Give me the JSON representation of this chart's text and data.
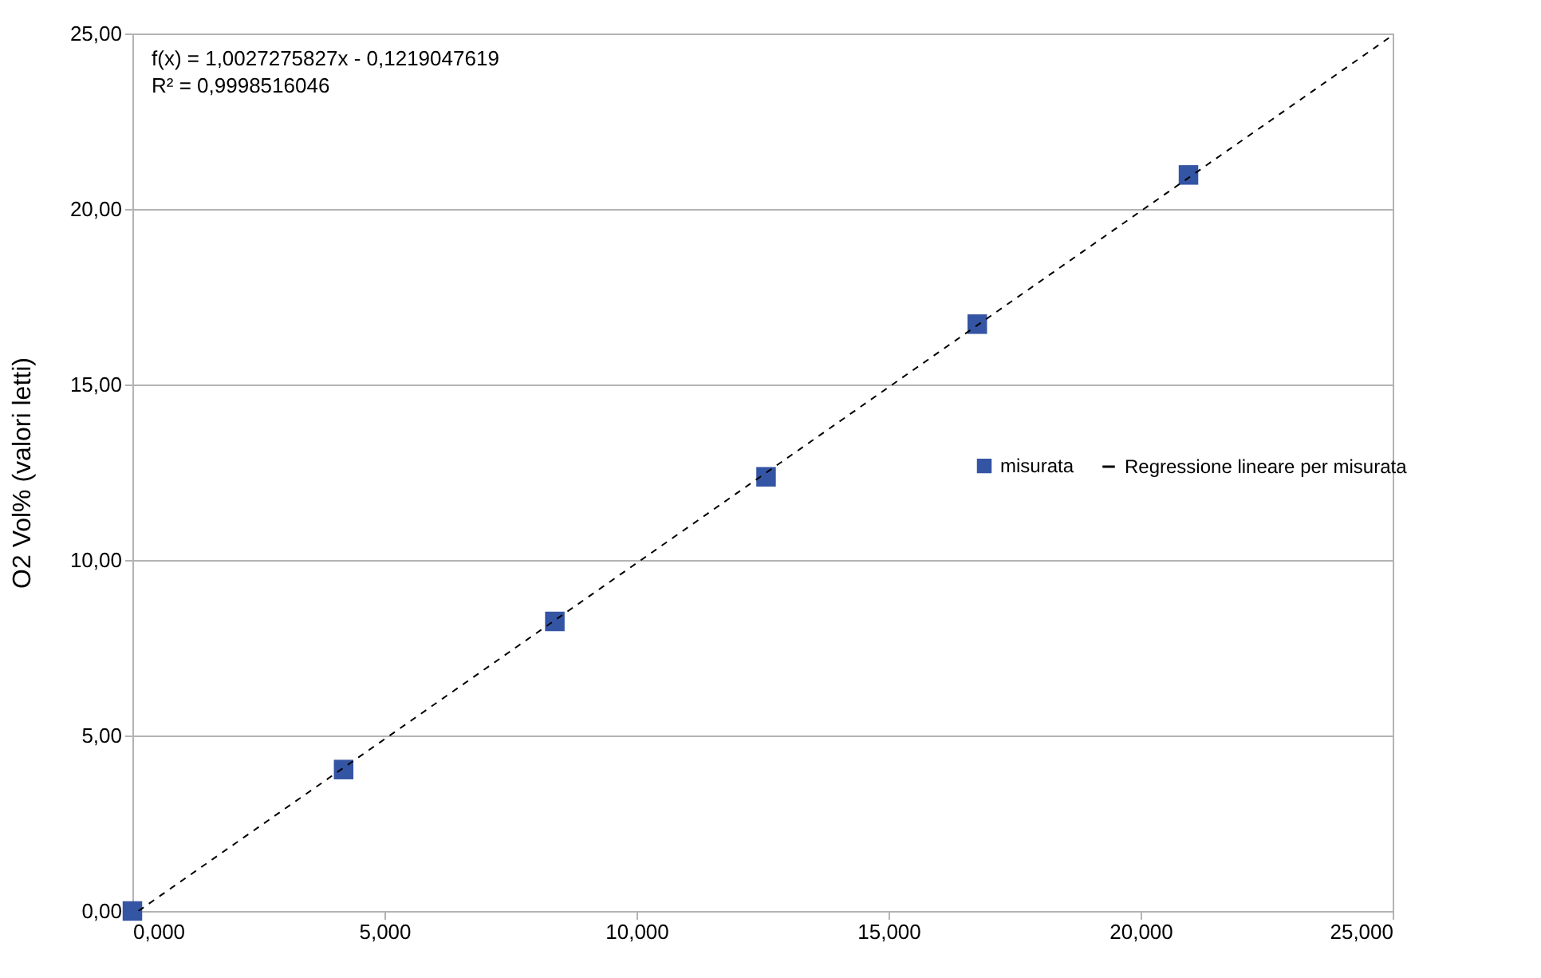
{
  "chart_data": {
    "type": "scatter",
    "ylabel": "O2 Vol% (valori letti)",
    "annotations": [
      "f(x) = 1,0027275827x - 0,1219047619",
      "R² = 0,9998516046"
    ],
    "series": [
      {
        "name": "misurata",
        "marker": "square",
        "color": "#3454a4",
        "x": [
          0,
          4.19,
          8.38,
          12.57,
          16.76,
          20.95
        ],
        "values": [
          0,
          4.03,
          8.25,
          12.37,
          16.72,
          20.97
        ]
      },
      {
        "name": "Regressione lineare per misurata",
        "type": "line",
        "color": "#000000",
        "line_style": "dashed",
        "marker": "none",
        "x": [
          0.12,
          25
        ],
        "values": [
          0,
          24.95
        ]
      }
    ],
    "xlim": [
      0,
      25
    ],
    "ylim": [
      0,
      25
    ],
    "xticks": [
      {
        "value": 0,
        "label": "0,000"
      },
      {
        "value": 5,
        "label": "5,000"
      },
      {
        "value": 10,
        "label": "10,000"
      },
      {
        "value": 15,
        "label": "15,000"
      },
      {
        "value": 20,
        "label": "20,000"
      },
      {
        "value": 25,
        "label": "25,000"
      }
    ],
    "yticks": [
      {
        "value": 0,
        "label": "0,00"
      },
      {
        "value": 5,
        "label": "5,00"
      },
      {
        "value": 10,
        "label": "10,00"
      },
      {
        "value": 15,
        "label": "15,00"
      },
      {
        "value": 20,
        "label": "20,00"
      },
      {
        "value": 25,
        "label": "25,00"
      }
    ],
    "grid": "y",
    "legend": "right"
  }
}
